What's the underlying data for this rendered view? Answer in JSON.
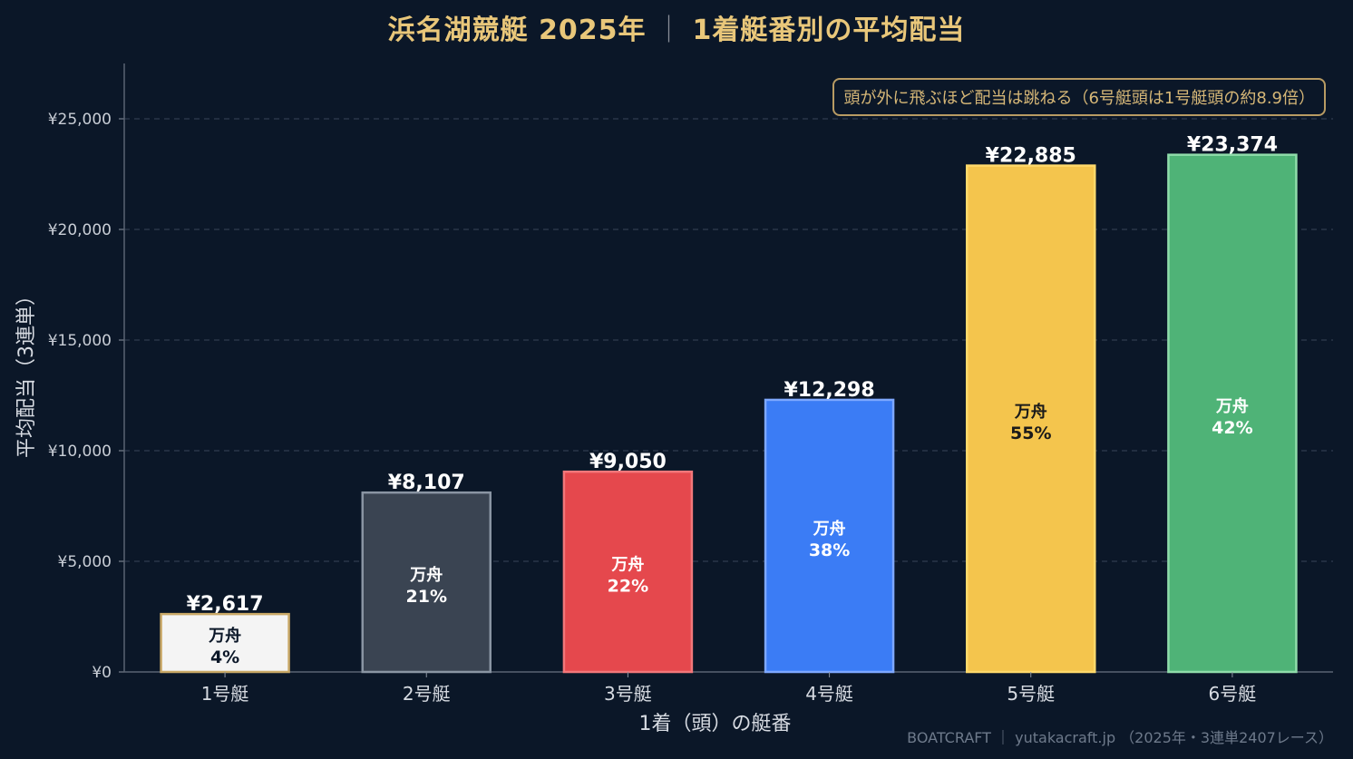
{
  "title": {
    "main": "浜名湖競艇 2025年",
    "sep": "｜",
    "sub": "1着艇番別の平均配当"
  },
  "annotation": "頭が外に飛ぶほど配当は跳ねる（6号艇頭は1号艇頭の約8.9倍）",
  "footer": "BOATCRAFT ｜ yutakacraft.jp （2025年・3連単2407レース）",
  "chart_data": {
    "type": "bar",
    "categories": [
      "1号艇",
      "2号艇",
      "3号艇",
      "4号艇",
      "5号艇",
      "6号艇"
    ],
    "values": [
      2617,
      8107,
      9050,
      12298,
      22885,
      23374
    ],
    "value_labels": [
      "¥2,617",
      "¥8,107",
      "¥9,050",
      "¥12,298",
      "¥22,885",
      "¥23,374"
    ],
    "inner_label": "万舟",
    "manshu_pct": [
      "4%",
      "21%",
      "22%",
      "38%",
      "55%",
      "42%"
    ],
    "colors": [
      "#f4f4f4",
      "#3a4452",
      "#e5484d",
      "#3b7cf5",
      "#f4c54d",
      "#4fb377"
    ],
    "edge_colors": [
      "#c9a866",
      "#8a95a3",
      "#f2777a",
      "#7ea8ff",
      "#ffd96b",
      "#8fdcaa"
    ],
    "inner_text_colors": [
      "#0b1728",
      "#ffffff",
      "#ffffff",
      "#ffffff",
      "#1a1a1a",
      "#ffffff"
    ],
    "xlabel": "1着（頭）の艇番",
    "ylabel": "平均配当（3連単）",
    "ylim": [
      0,
      27500
    ],
    "yticks": [
      0,
      5000,
      10000,
      15000,
      20000,
      25000
    ],
    "ytick_labels": [
      "¥0",
      "¥5,000",
      "¥10,000",
      "¥15,000",
      "¥20,000",
      "¥25,000"
    ],
    "grid": true,
    "background": "#0b1728",
    "accent": "#e9c77a"
  }
}
